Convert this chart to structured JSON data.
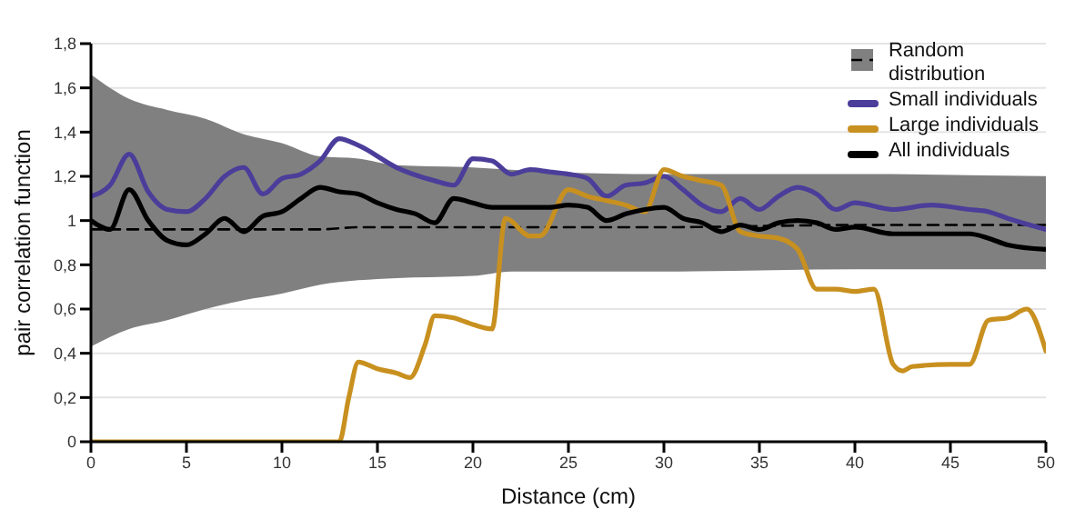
{
  "chart_data": {
    "type": "line",
    "xlabel": "Distance (cm)",
    "ylabel": "pair correlation function",
    "xlim": [
      0,
      50
    ],
    "xticks": [
      0,
      5,
      10,
      15,
      20,
      25,
      30,
      35,
      40,
      45,
      50
    ],
    "ylim": [
      0,
      1.8
    ],
    "yticks": [
      0,
      {
        "value": 0.2,
        "label": "0,2"
      },
      {
        "value": 0.4,
        "label": "0,4"
      },
      {
        "value": 0.6,
        "label": "0,6"
      },
      {
        "value": 0.8,
        "label": "0,8"
      },
      1,
      {
        "value": 1.2,
        "label": "1,2"
      },
      {
        "value": 1.4,
        "label": "1,4"
      },
      {
        "value": 1.6,
        "label": "1,6"
      },
      {
        "value": 1.8,
        "label": "1,8"
      }
    ],
    "grid": "y",
    "legend": "top right",
    "marker": "none",
    "series": [
      {
        "name": "Random distribution",
        "type": "line",
        "line_style": "dashed",
        "color": "#000000",
        "x": [
          0,
          2,
          4,
          6,
          8,
          10,
          12,
          14,
          16,
          20,
          22,
          24,
          30,
          40,
          50
        ],
        "values": [
          0.96,
          0.96,
          0.96,
          0.96,
          0.96,
          0.96,
          0.96,
          0.97,
          0.97,
          0.97,
          0.97,
          0.97,
          0.97,
          0.98,
          0.98
        ],
        "lower": [
          0.43,
          0.51,
          0.55,
          0.6,
          0.64,
          0.67,
          0.71,
          0.73,
          0.74,
          0.75,
          0.77,
          0.77,
          0.77,
          0.78,
          0.78
        ],
        "upper": [
          1.66,
          1.55,
          1.5,
          1.46,
          1.39,
          1.35,
          1.29,
          1.28,
          1.25,
          1.24,
          1.23,
          1.22,
          1.21,
          1.21,
          1.2
        ]
      },
      {
        "name": "Small individuals",
        "color": "#4b3d9a",
        "x": [
          0,
          1,
          2,
          3,
          4,
          5,
          6,
          7,
          8,
          9,
          10,
          11,
          12,
          13,
          14,
          16,
          18,
          19,
          20,
          21,
          22,
          23,
          24,
          25,
          26,
          27,
          28,
          29,
          30,
          31,
          32,
          33,
          34,
          35,
          36,
          37,
          38,
          39,
          40,
          42,
          44,
          46,
          47,
          48,
          50
        ],
        "values": [
          1.11,
          1.16,
          1.3,
          1.13,
          1.05,
          1.04,
          1.1,
          1.2,
          1.24,
          1.12,
          1.19,
          1.21,
          1.27,
          1.37,
          1.34,
          1.24,
          1.18,
          1.16,
          1.28,
          1.27,
          1.21,
          1.23,
          1.22,
          1.21,
          1.19,
          1.11,
          1.16,
          1.17,
          1.2,
          1.14,
          1.07,
          1.04,
          1.1,
          1.05,
          1.11,
          1.15,
          1.12,
          1.05,
          1.08,
          1.05,
          1.07,
          1.05,
          1.04,
          1.01,
          0.96
        ]
      },
      {
        "name": "Large individuals",
        "color": "#c8901f",
        "x": [
          0,
          12.2,
          13,
          13.5,
          14,
          15,
          16,
          16.7,
          17.5,
          18,
          19,
          20,
          21,
          21.7,
          23,
          23.5,
          25,
          26,
          27,
          28,
          29,
          30,
          31,
          32,
          33,
          34,
          35,
          36,
          37,
          38,
          39,
          40,
          41,
          42,
          42.5,
          43,
          45,
          46,
          47,
          48,
          49,
          50
        ],
        "values": [
          0,
          0,
          0,
          0.2,
          0.36,
          0.33,
          0.31,
          0.29,
          0.44,
          0.57,
          0.56,
          0.53,
          0.51,
          1.01,
          0.93,
          0.93,
          1.14,
          1.11,
          1.09,
          1.07,
          1.04,
          1.23,
          1.2,
          1.18,
          1.16,
          0.95,
          0.93,
          0.92,
          0.87,
          0.69,
          0.69,
          0.68,
          0.69,
          0.35,
          0.32,
          0.34,
          0.35,
          0.35,
          0.55,
          0.56,
          0.6,
          0.41
        ]
      },
      {
        "name": "All individuals",
        "color": "#000000",
        "x": [
          0,
          1,
          2,
          3,
          4,
          5,
          6,
          7,
          8,
          9,
          10,
          11,
          12,
          13,
          14,
          15,
          16,
          17,
          18,
          19,
          20,
          21,
          24,
          25,
          26,
          27,
          28,
          29,
          30,
          31,
          32,
          33,
          34,
          35,
          36,
          37,
          38,
          39,
          40,
          42,
          44,
          46,
          47,
          48,
          50
        ],
        "values": [
          1,
          0.96,
          1.14,
          1,
          0.91,
          0.89,
          0.94,
          1.01,
          0.95,
          1.02,
          1.04,
          1.1,
          1.15,
          1.13,
          1.12,
          1.08,
          1.05,
          1.03,
          0.99,
          1.1,
          1.08,
          1.06,
          1.06,
          1.07,
          1.06,
          1,
          1.03,
          1.05,
          1.06,
          1.01,
          0.99,
          0.95,
          0.98,
          0.96,
          0.99,
          1,
          0.99,
          0.96,
          0.97,
          0.94,
          0.94,
          0.94,
          0.92,
          0.89,
          0.87
        ]
      }
    ]
  }
}
